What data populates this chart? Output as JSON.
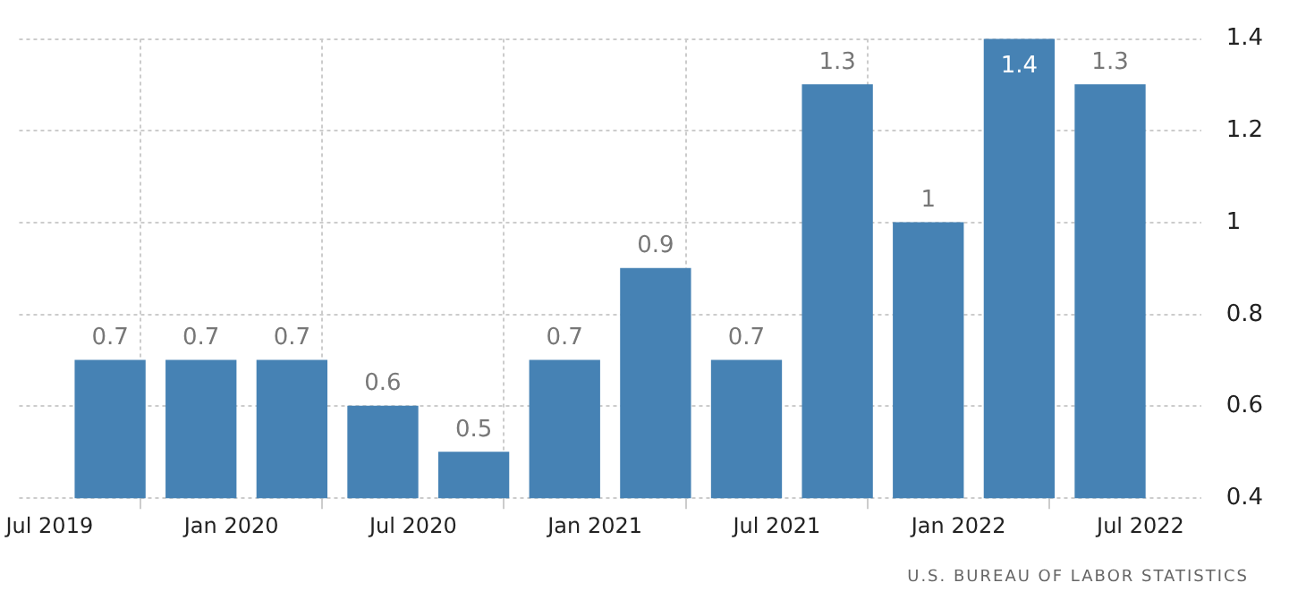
{
  "chart_data": {
    "type": "bar",
    "x": [
      "2019-09",
      "2019-12",
      "2020-03",
      "2020-06",
      "2020-09",
      "2020-12",
      "2021-03",
      "2021-06",
      "2021-09",
      "2021-12",
      "2022-03",
      "2022-06"
    ],
    "values": [
      0.7,
      0.7,
      0.7,
      0.6,
      0.5,
      0.7,
      0.9,
      0.7,
      1.3,
      1,
      1.4,
      1.3
    ],
    "color": "#4682b4",
    "data_labels": true,
    "xlim": [
      "2019-06",
      "2022-09"
    ],
    "xticks": [
      {
        "value": "2019-07",
        "label": "Jul 2019"
      },
      {
        "value": "2020-01",
        "label": "Jan 2020"
      },
      {
        "value": "2020-07",
        "label": "Jul 2020"
      },
      {
        "value": "2021-01",
        "label": "Jan 2021"
      },
      {
        "value": "2021-07",
        "label": "Jul 2021"
      },
      {
        "value": "2022-01",
        "label": "Jan 2022"
      },
      {
        "value": "2022-07",
        "label": "Jul 2022"
      }
    ],
    "ylim": [
      0.4,
      1.4
    ],
    "yticks": [
      0.4,
      0.6,
      0.8,
      1,
      1.2,
      1.4
    ],
    "grid": true,
    "legend": false,
    "annotations": [
      "U.S. BUREAU OF LABOR STATISTICS"
    ]
  }
}
